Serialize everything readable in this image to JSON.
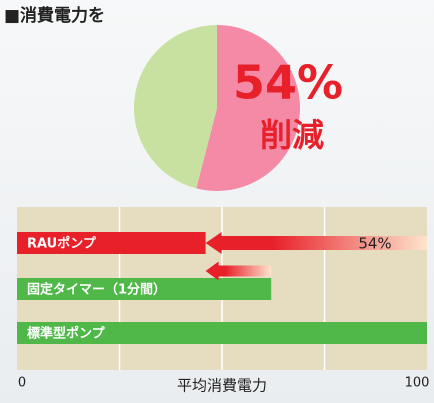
{
  "chart_data": [
    {
      "type": "pie",
      "title": "■消費電力を",
      "values": [
        54,
        46
      ],
      "value_labels": [
        "54%",
        null
      ],
      "colors": [
        "#f48aa6",
        "#c8e0a0"
      ],
      "annotation": "削減"
    },
    {
      "type": "hbar",
      "categories": [
        "RAUポンプ",
        "固定タイマー（1分間）",
        "標準型ポンプ"
      ],
      "values": [
        46,
        62,
        100
      ],
      "colors": [
        "#e8202a",
        "#4fb848",
        "#4fb848"
      ],
      "xlim": [
        0,
        100
      ],
      "xticks": [
        0,
        100
      ],
      "grid": [
        25,
        50,
        75
      ],
      "xlabel": "平均消費電力",
      "arrows": [
        {
          "from": 100,
          "to": 46,
          "label": "54%"
        },
        {
          "from": 62,
          "to": 46
        }
      ]
    }
  ]
}
